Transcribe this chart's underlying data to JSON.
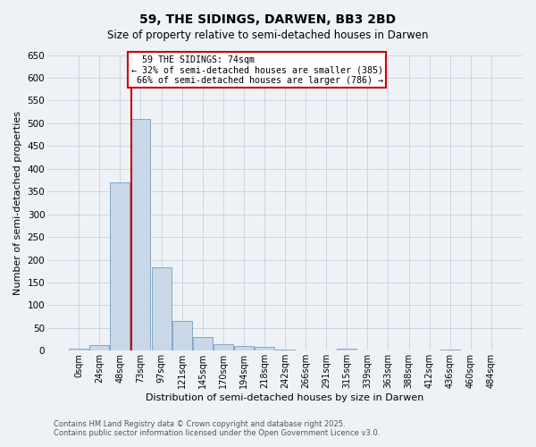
{
  "title_line1": "59, THE SIDINGS, DARWEN, BB3 2BD",
  "title_line2": "Size of property relative to semi-detached houses in Darwen",
  "xlabel": "Distribution of semi-detached houses by size in Darwen",
  "ylabel": "Number of semi-detached properties",
  "categories": [
    "0sqm",
    "24sqm",
    "48sqm",
    "73sqm",
    "97sqm",
    "121sqm",
    "145sqm",
    "170sqm",
    "194sqm",
    "218sqm",
    "242sqm",
    "266sqm",
    "291sqm",
    "315sqm",
    "339sqm",
    "363sqm",
    "388sqm",
    "412sqm",
    "436sqm",
    "460sqm",
    "484sqm"
  ],
  "values": [
    5,
    13,
    370,
    510,
    183,
    66,
    30,
    15,
    11,
    8,
    3,
    0,
    0,
    5,
    0,
    0,
    0,
    0,
    3,
    0,
    0
  ],
  "bar_color": "#c8d8e8",
  "bar_edge_color": "#7a9cbf",
  "grid_color": "#c8d0dc",
  "background_color": "#eef2f6",
  "subject_bin_index": 3,
  "subject_label": "59 THE SIDINGS: 74sqm",
  "pct_smaller": 32,
  "pct_smaller_count": 385,
  "pct_larger": 66,
  "pct_larger_count": 786,
  "annotation_box_color": "#cc0000",
  "ylim_max": 650,
  "yticks": [
    0,
    50,
    100,
    150,
    200,
    250,
    300,
    350,
    400,
    450,
    500,
    550,
    600,
    650
  ],
  "footnote_line1": "Contains HM Land Registry data © Crown copyright and database right 2025.",
  "footnote_line2": "Contains public sector information licensed under the Open Government Licence v3.0."
}
